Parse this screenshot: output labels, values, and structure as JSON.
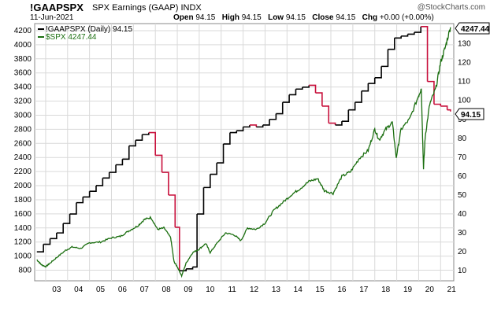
{
  "header": {
    "ticker": "!GAAPSPX",
    "subtitle": "SPX Earnings (GAAP)  INDX",
    "brand": "@StockCharts.com",
    "date": "11-Jun-2021",
    "open_label": "Open",
    "open": "94.15",
    "high_label": "High",
    "high": "94.15",
    "low_label": "Low",
    "low": "94.15",
    "close_label": "Close",
    "close": "94.15",
    "chg_label": "Chg",
    "chg": "+0.00 (+0.00%)"
  },
  "legend": {
    "primary": "!GAAPSPX (Daily) 94.15",
    "secondary": "$SPX 4247.44"
  },
  "badges": {
    "spx_last": "4247.44",
    "earn_last": "94.15"
  },
  "colors": {
    "earnings_up": "#000000",
    "earnings_down": "#c8103c",
    "spx": "#1a6e0f",
    "grid": "#d9d9d9"
  },
  "chart_data": {
    "type": "line",
    "left_axis_ticks": [
      800,
      1000,
      1200,
      1400,
      1600,
      1800,
      2000,
      2200,
      2400,
      2600,
      2800,
      3000,
      3200,
      3400,
      3600,
      3800,
      4000,
      4200
    ],
    "right_axis_ticks": [
      10,
      20,
      30,
      40,
      50,
      60,
      70,
      80,
      90,
      100,
      110,
      120,
      130
    ],
    "x_ticks": [
      "03",
      "04",
      "05",
      "06",
      "07",
      "08",
      "09",
      "10",
      "11",
      "12",
      "13",
      "14",
      "15",
      "16",
      "17",
      "18",
      "19",
      "20",
      "21"
    ],
    "left_ylim": [
      650,
      4300
    ],
    "right_ylim": [
      4.7,
      140.6
    ],
    "xlim": [
      2002.5,
      2021.6
    ],
    "series": [
      {
        "name": "!GAAPSPX",
        "axis": "right",
        "x": [
          2002.6,
          2002.9,
          2003.2,
          2003.5,
          2003.8,
          2004.1,
          2004.4,
          2004.7,
          2005.0,
          2005.3,
          2005.6,
          2005.9,
          2006.2,
          2006.5,
          2006.8,
          2007.1,
          2007.4,
          2007.7,
          2008.0,
          2008.3,
          2008.6,
          2008.9,
          2009.1,
          2009.4,
          2009.7,
          2009.9,
          2010.2,
          2010.5,
          2010.8,
          2011.1,
          2011.4,
          2011.7,
          2012.0,
          2012.3,
          2012.6,
          2012.9,
          2013.2,
          2013.5,
          2013.8,
          2014.1,
          2014.4,
          2014.7,
          2015.0,
          2015.3,
          2015.6,
          2015.9,
          2016.2,
          2016.5,
          2016.8,
          2017.1,
          2017.4,
          2017.7,
          2018.0,
          2018.3,
          2018.6,
          2018.9,
          2019.2,
          2019.5,
          2019.8,
          2020.1,
          2020.4,
          2020.7,
          2021.0,
          2021.3,
          2021.45
        ],
        "values": [
          20,
          24,
          27,
          30,
          35,
          40,
          46,
          49,
          52,
          55,
          59,
          62,
          66,
          69,
          76,
          79,
          82,
          83,
          71,
          62,
          50,
          33,
          10,
          11,
          12,
          40,
          54,
          61,
          67,
          77,
          83,
          84,
          86,
          87,
          86,
          87,
          90,
          93,
          99,
          103,
          106,
          107,
          108,
          104,
          97,
          88,
          87,
          89,
          95,
          99,
          105,
          109,
          112,
          118,
          127,
          133,
          134,
          135,
          136,
          139,
          110,
          98,
          97,
          95,
          94.15
        ]
      },
      {
        "name": "$SPX",
        "axis": "left",
        "x": [
          2002.6,
          2002.8,
          2003.0,
          2003.2,
          2003.5,
          2003.9,
          2004.2,
          2004.6,
          2005.0,
          2005.5,
          2006.0,
          2006.4,
          2006.8,
          2007.2,
          2007.5,
          2007.8,
          2008.1,
          2008.4,
          2008.7,
          2008.85,
          2009.0,
          2009.2,
          2009.4,
          2009.7,
          2010.0,
          2010.3,
          2010.5,
          2010.8,
          2011.2,
          2011.6,
          2011.9,
          2012.2,
          2012.6,
          2013.0,
          2013.4,
          2013.8,
          2014.2,
          2014.6,
          2015.0,
          2015.4,
          2015.7,
          2016.1,
          2016.5,
          2016.9,
          2017.3,
          2017.7,
          2018.0,
          2018.2,
          2018.5,
          2018.8,
          2018.98,
          2019.2,
          2019.6,
          2020.0,
          2020.12,
          2020.22,
          2020.3,
          2020.5,
          2020.8,
          2021.0,
          2021.2,
          2021.45
        ],
        "values": [
          950,
          880,
          850,
          900,
          980,
          1080,
          1130,
          1110,
          1190,
          1200,
          1260,
          1280,
          1360,
          1430,
          1520,
          1550,
          1380,
          1400,
          1260,
          920,
          850,
          720,
          900,
          1050,
          1100,
          1180,
          1050,
          1180,
          1330,
          1300,
          1220,
          1400,
          1380,
          1470,
          1650,
          1760,
          1870,
          1960,
          2060,
          2100,
          1930,
          1890,
          2130,
          2200,
          2390,
          2500,
          2800,
          2650,
          2800,
          2900,
          2400,
          2800,
          2950,
          3280,
          3380,
          2250,
          2700,
          3150,
          3400,
          3750,
          3950,
          4247.44
        ]
      }
    ]
  }
}
